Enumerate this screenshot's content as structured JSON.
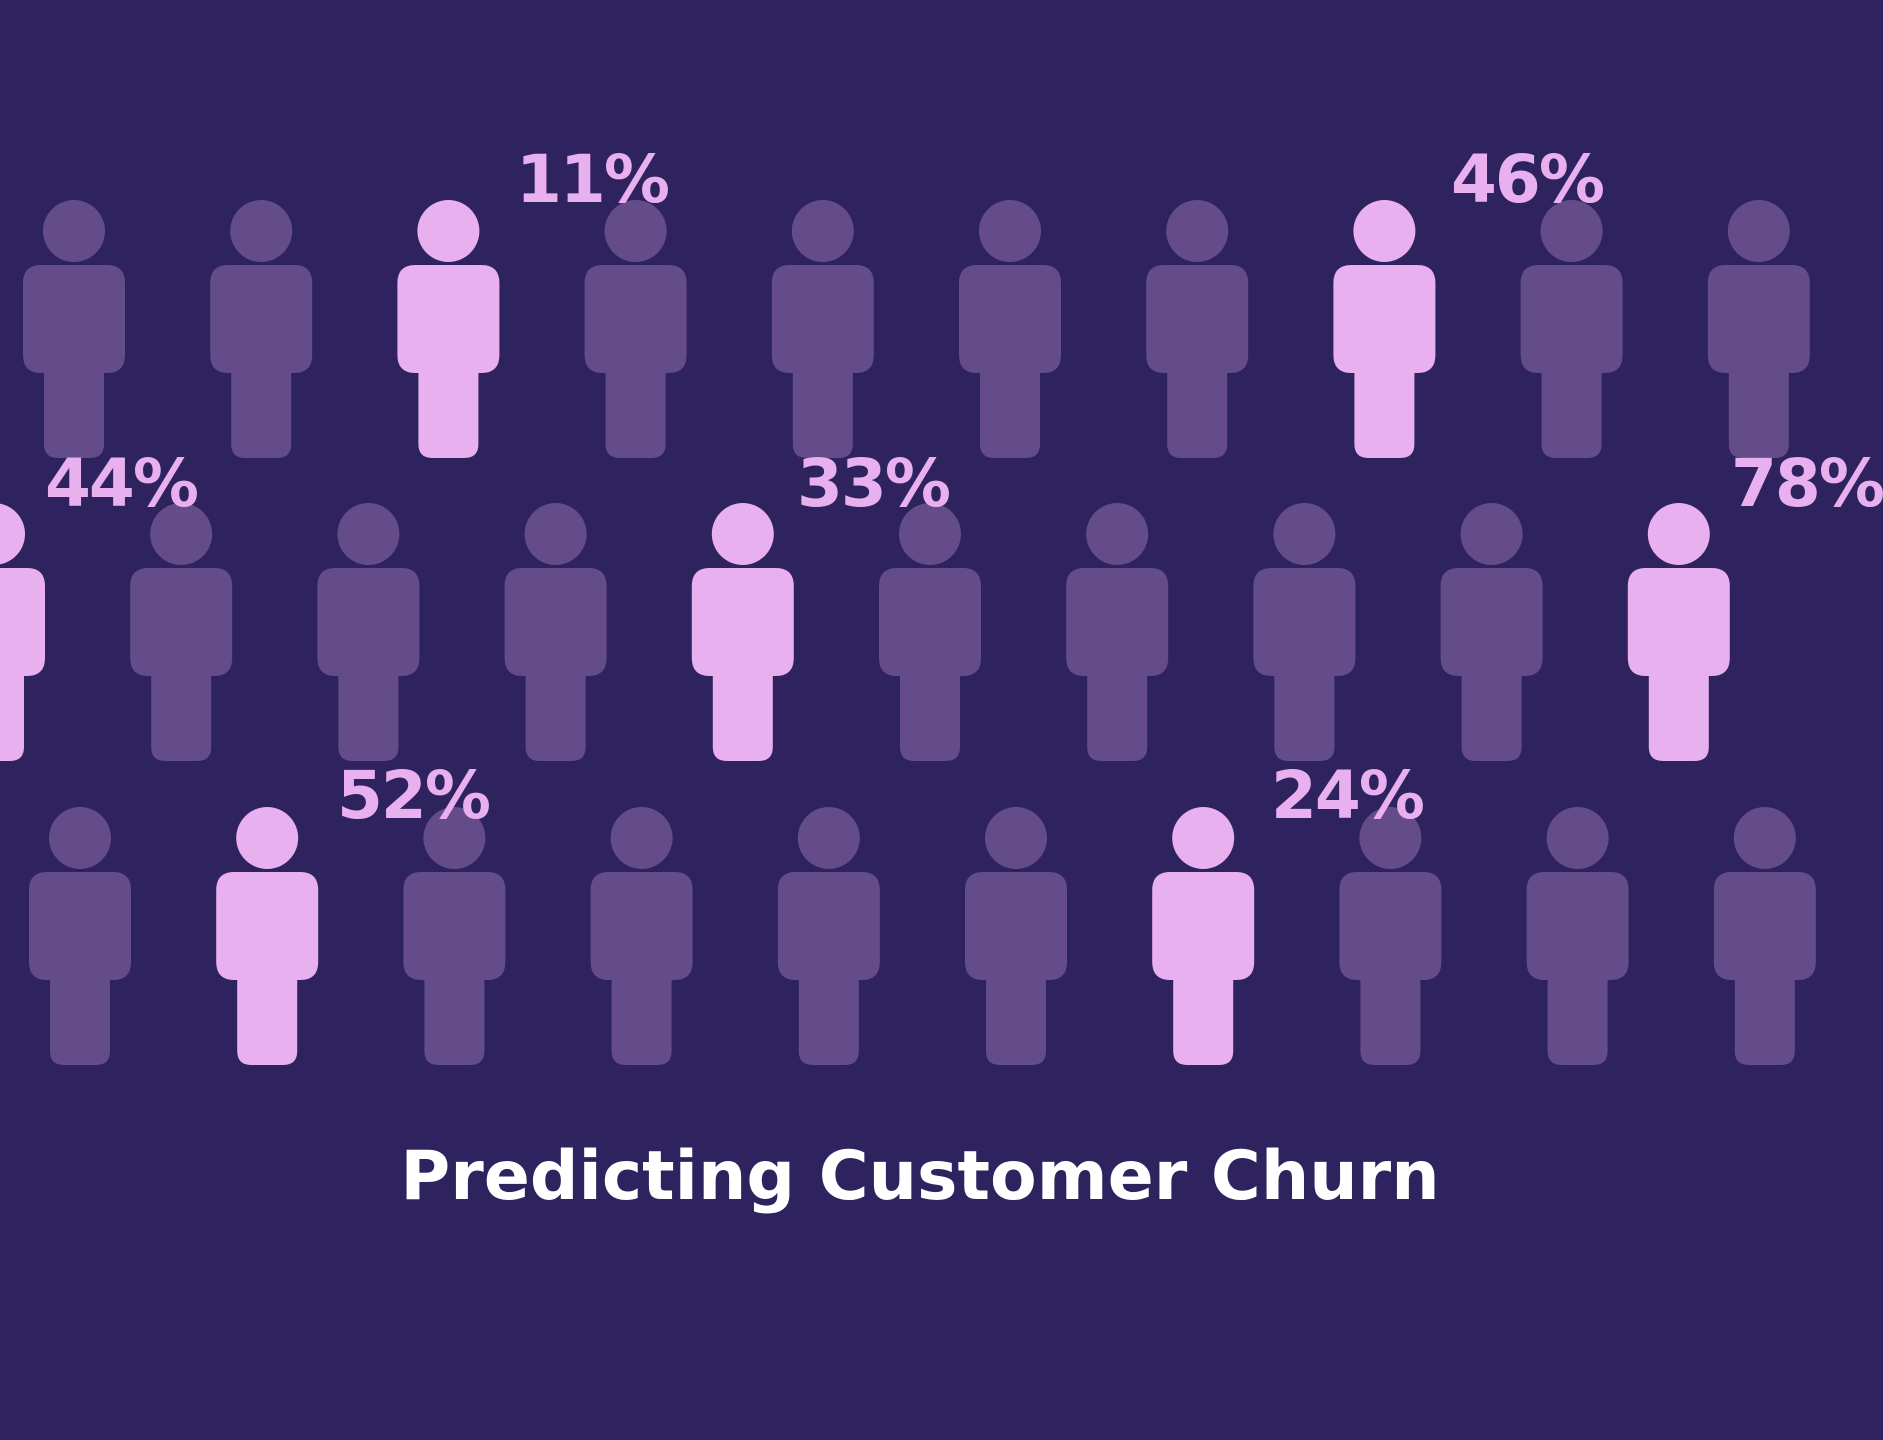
{
  "title": "Predicting Customer Churn",
  "colors": {
    "background": "#2e235e",
    "figure_dim": "#634c89",
    "figure_highlight": "#e8b0ee",
    "label": "#e8b0ee",
    "title": "#ffffff"
  },
  "icon": "person-icon",
  "rows": [
    {
      "highlighted": [
        2,
        7
      ]
    },
    {
      "highlighted": [
        0,
        4,
        9
      ]
    },
    {
      "highlighted": [
        1,
        6
      ]
    }
  ],
  "labels": [
    {
      "text": "11%"
    },
    {
      "text": "46%"
    },
    {
      "text": "44%"
    },
    {
      "text": "33%"
    },
    {
      "text": "78%"
    },
    {
      "text": "52%"
    },
    {
      "text": "24%"
    }
  ]
}
